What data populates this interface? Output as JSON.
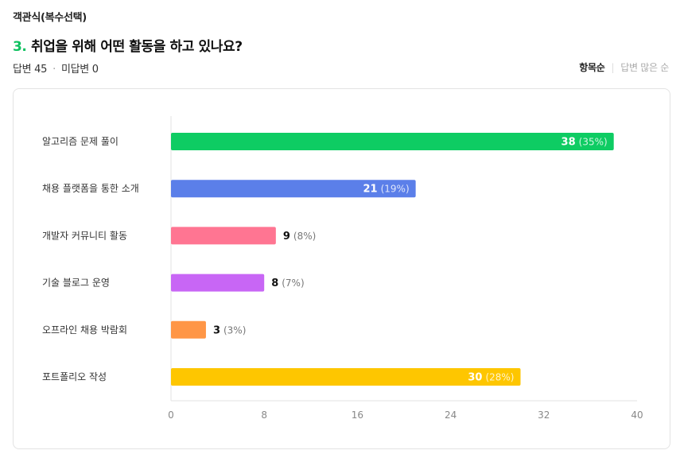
{
  "header": {
    "question_type": "객관식(복수선택)",
    "question_number": "3.",
    "question_text": "취업을 위해 어떤 활동을 하고 있나요?",
    "answered_label": "답변 45",
    "unanswered_label": "미답변 0",
    "dot": "·"
  },
  "sort": {
    "active_label": "항목순",
    "separator": "|",
    "inactive_label": "답변 많은 순"
  },
  "chart_data": {
    "type": "bar",
    "orientation": "horizontal",
    "categories": [
      "알고리즘 문제 풀이",
      "채용 플랫폼을 통한 소개",
      "개발자 커뮤니티 활동",
      "기술 블로그 운영",
      "오프라인 채용 박람회",
      "포트폴리오 작성"
    ],
    "values": [
      38,
      21,
      9,
      8,
      3,
      30
    ],
    "percent_labels": [
      "(35%)",
      "(19%)",
      "(8%)",
      "(7%)",
      "(3%)",
      "(28%)"
    ],
    "colors": [
      "#0ecc63",
      "#5b7fe9",
      "#ff7592",
      "#c866f5",
      "#ff9646",
      "#fec600"
    ],
    "xlim": [
      0,
      40
    ],
    "xticks": [
      0,
      8,
      16,
      24,
      32,
      40
    ],
    "grid": false,
    "legend": "none"
  }
}
